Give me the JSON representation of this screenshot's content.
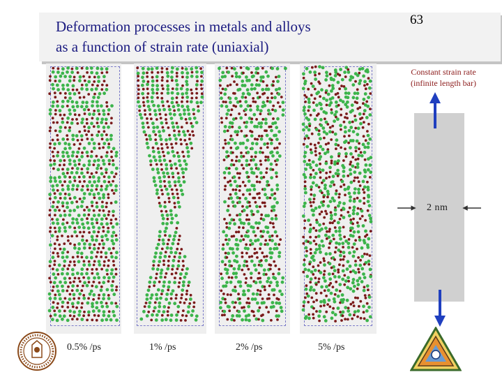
{
  "slide": {
    "title_line1": "Deformation processes in metals and alloys",
    "title_line2": "as a function of strain rate (uniaxial)",
    "page_number": "63"
  },
  "panels": [
    {
      "label": "0.5% /ps",
      "pattern": "twinned-bands"
    },
    {
      "label": "1% /ps",
      "pattern": "necking"
    },
    {
      "label": "2% /ps",
      "pattern": "slip-bands"
    },
    {
      "label": "5% /ps",
      "pattern": "disordered"
    }
  ],
  "diagram": {
    "note_line1": "Constant strain rate",
    "note_line2": "(infinite length bar)",
    "width_label": "2 nm"
  },
  "colors": {
    "title": "#1a1a80",
    "atom_green": "#3cb44b",
    "atom_red": "#7a1a1a",
    "arrow": "#1f3fbf",
    "bar": "#d0d0d0"
  },
  "icons": [
    "university-seal-icon",
    "triangle-logo-icon"
  ]
}
